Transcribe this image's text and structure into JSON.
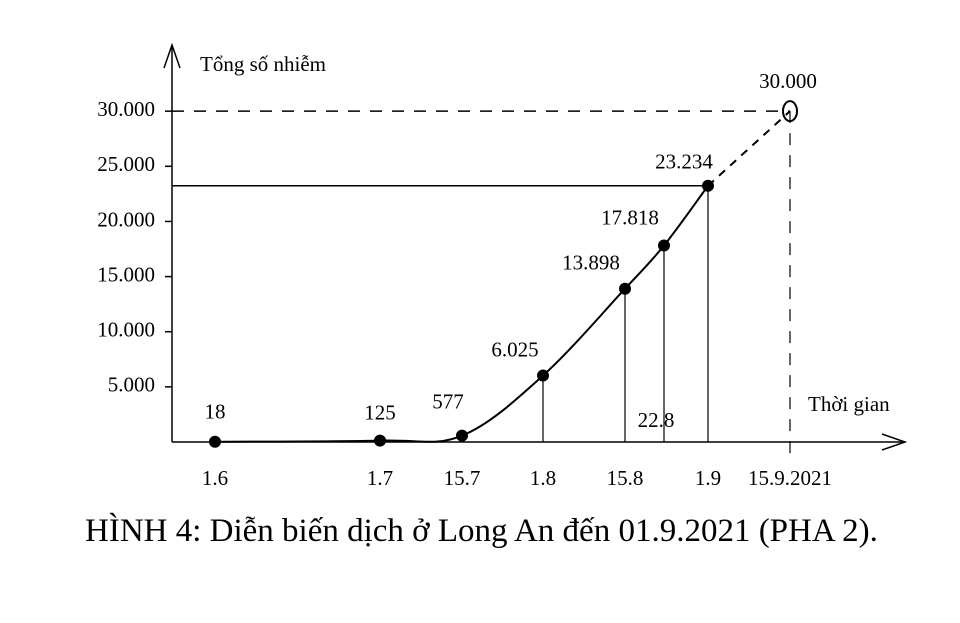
{
  "chart_data": {
    "type": "line",
    "y_label": "Tổng số nhiễm",
    "x_label": "Thời gian",
    "caption": "HÌNH 4: Diễn biến dịch ở Long An đến 01.9.2021 (PHA 2).",
    "categories": [
      "1.6",
      "1.7",
      "15.7",
      "1.8",
      "15.8",
      "22.8",
      "1.9",
      "15.9.2021"
    ],
    "values": [
      18,
      125,
      577,
      6025,
      13898,
      17818,
      23234,
      30000
    ],
    "value_labels": [
      "18",
      "125",
      "577",
      "6.025",
      "13.898",
      "17.818",
      "23.234",
      "30.000"
    ],
    "projected": [
      false,
      false,
      false,
      false,
      false,
      false,
      false,
      true
    ],
    "color": "#000000",
    "ylim": [
      0,
      36000
    ],
    "yticks": [
      {
        "value": 5000,
        "label": "5.000"
      },
      {
        "value": 10000,
        "label": "10.000"
      },
      {
        "value": 15000,
        "label": "15.000"
      },
      {
        "value": 20000,
        "label": "20.000"
      },
      {
        "value": 25000,
        "label": "25.000"
      },
      {
        "value": 30000,
        "label": "30.000"
      }
    ]
  }
}
